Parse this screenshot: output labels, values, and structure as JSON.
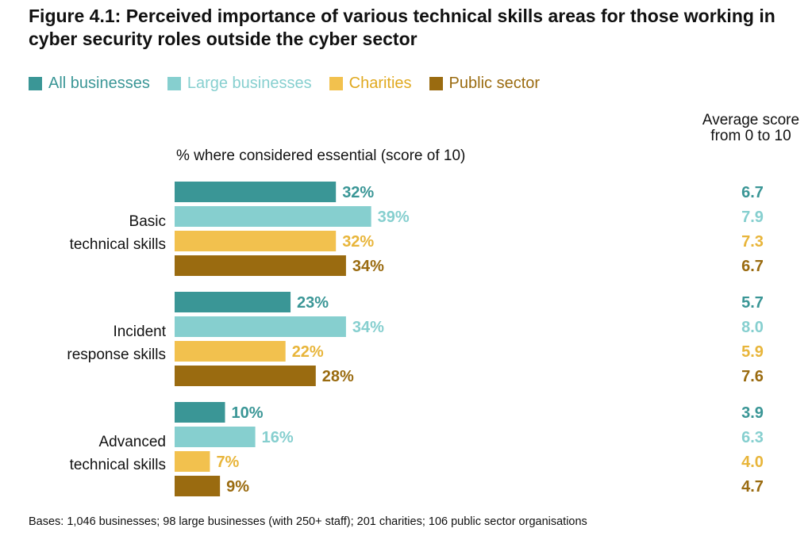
{
  "chart_data": {
    "type": "bar",
    "orientation": "horizontal",
    "title": "Figure 4.1: Perceived importance of various technical skills areas for those working in cyber security roles outside the cyber sector",
    "xlabel": "% where considered essential (score of 10)",
    "avg_header": "Average score from 0 to 10",
    "categories": [
      "Basic technical skills",
      "Incident response skills",
      "Advanced technical skills"
    ],
    "category_lines": [
      [
        "Basic",
        "technical skills"
      ],
      [
        "Incident",
        "response skills"
      ],
      [
        "Advanced",
        "technical skills"
      ]
    ],
    "xlim": [
      0,
      100
    ],
    "series": [
      {
        "name": "All businesses",
        "color": "#3a9696",
        "values": [
          32,
          23,
          10
        ],
        "labels": [
          "32%",
          "23%",
          "10%"
        ],
        "averages": [
          "6.7",
          "5.7",
          "3.9"
        ]
      },
      {
        "name": "Large businesses",
        "color": "#86cfcf",
        "values": [
          39,
          34,
          16
        ],
        "labels": [
          "39%",
          "34%",
          "16%"
        ],
        "averages": [
          "7.9",
          "8.0",
          "6.3"
        ]
      },
      {
        "name": "Charities",
        "color": "#f2c14e",
        "values": [
          32,
          22,
          7
        ],
        "labels": [
          "32%",
          "22%",
          "7%"
        ],
        "averages": [
          "7.3",
          "5.9",
          "4.0"
        ]
      },
      {
        "name": "Public sector",
        "color": "#9a6b10",
        "values": [
          34,
          28,
          9
        ],
        "labels": [
          "34%",
          "28%",
          "9%"
        ],
        "averages": [
          "6.7",
          "7.6",
          "4.7"
        ]
      }
    ],
    "footnote": "Bases: 1,046 businesses; 98 large businesses (with 250+ staff); 201 charities; 106 public sector organisations"
  }
}
